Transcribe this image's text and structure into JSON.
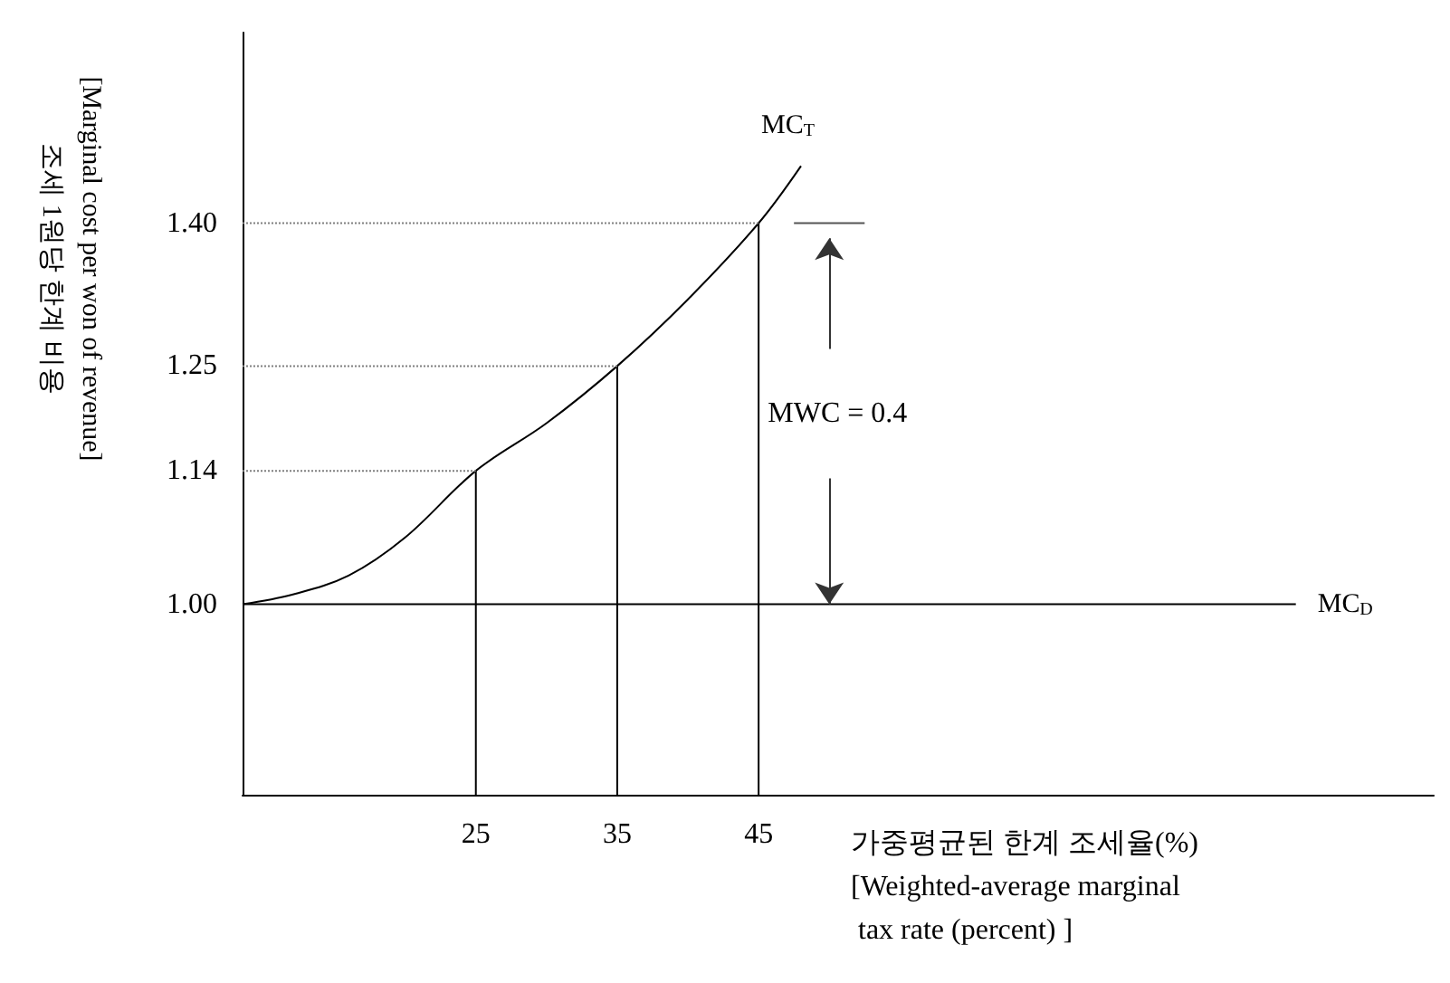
{
  "chart_data": {
    "type": "line",
    "ylabel": "조세 1원당 한계 비용\n[Marginal cost per won of revenue]",
    "xlabel": "가중평균된 한계 조세율(%)\n[Weighted-average marginal\n tax rate (percent) ]",
    "xlim": [
      8.5,
      92.75
    ],
    "xticks": [
      25,
      35,
      45
    ],
    "ylim": [
      0.8,
      1.6
    ],
    "yticks": [
      {
        "value": 1.0,
        "label": "1.00"
      },
      1.14,
      1.25,
      {
        "value": 1.4,
        "label": "1.40"
      }
    ],
    "grid": false,
    "legend": false,
    "marker": "none",
    "series": [
      {
        "name": "MC$_{T}$",
        "color": "#000000",
        "x": [
          8.5,
          12,
          16,
          20,
          25,
          30,
          35,
          40,
          45,
          48
        ],
        "values": [
          1.0,
          1.01,
          1.03,
          1.07,
          1.14,
          1.19,
          1.25,
          1.32,
          1.4,
          1.46
        ]
      },
      {
        "name": "MC$_{D}$",
        "color": "#000000",
        "x": [
          8.5,
          83
        ],
        "values": [
          1.0,
          1.0
        ]
      },
      {
        "color": "#000000",
        "x": [
          25,
          25
        ],
        "values": [
          0.8,
          1.14
        ]
      },
      {
        "color": "#000000",
        "x": [
          35,
          35
        ],
        "values": [
          0.8,
          1.25
        ]
      },
      {
        "color": "#000000",
        "x": [
          45,
          45
        ],
        "values": [
          0.8,
          1.4
        ]
      },
      {
        "color": "#808080",
        "line_style": "dotted",
        "x": [
          8.5,
          25
        ],
        "values": [
          1.14,
          1.14
        ]
      },
      {
        "color": "#808080",
        "line_style": "dotted",
        "x": [
          8.5,
          35
        ],
        "values": [
          1.25,
          1.25
        ]
      },
      {
        "color": "#808080",
        "line_style": "dotted",
        "x": [
          8.5,
          45
        ],
        "values": [
          1.4,
          1.4
        ]
      },
      {
        "color": "#555555",
        "x": [
          47.5,
          52.5
        ],
        "values": [
          1.4,
          1.4
        ]
      }
    ],
    "annotations": [
      "MWC = 0.4"
    ]
  }
}
